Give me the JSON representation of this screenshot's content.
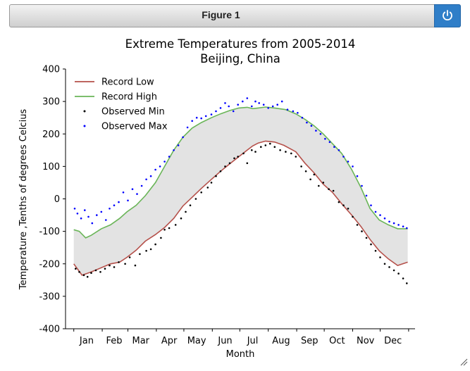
{
  "window": {
    "title": "Figure 1",
    "power_icon": "power-icon",
    "resize_icon": "resize-grip-icon"
  },
  "chart_data": {
    "type": "line",
    "title": "Extreme Temperatures from 2005-2014",
    "subtitle": "Beijing, China",
    "xlabel": "Month",
    "ylabel": "Temperature ,Tenths of degrees Celcius",
    "ylim": [
      -400,
      400
    ],
    "xlim": [
      -8,
      373
    ],
    "yticks": [
      -400,
      -300,
      -200,
      -100,
      0,
      100,
      200,
      300,
      400
    ],
    "month_labels": [
      "Jan",
      "Feb",
      "Mar",
      "Apr",
      "May",
      "Jun",
      "Jul",
      "Aug",
      "Sep",
      "Oct",
      "Nov",
      "Dec"
    ],
    "month_positions": [
      15,
      45,
      74,
      105,
      135,
      166,
      196,
      227,
      258,
      288,
      319,
      349
    ],
    "grid": false,
    "legend_position": "top-left",
    "fill_between": {
      "color": "#e3e3e3"
    },
    "series": [
      {
        "name": "Record Low",
        "kind": "line",
        "color": "#b5504a",
        "x": [
          1,
          10,
          20,
          31,
          41,
          51,
          59,
          69,
          79,
          90,
          100,
          110,
          120,
          130,
          140,
          151,
          161,
          171,
          181,
          190,
          196,
          202,
          210,
          220,
          230,
          243,
          253,
          263,
          273,
          283,
          293,
          304,
          314,
          324,
          334,
          344,
          354,
          365
        ],
        "y": [
          -200,
          -235,
          -225,
          -212,
          -200,
          -195,
          -180,
          -158,
          -130,
          -110,
          -88,
          -60,
          -22,
          5,
          32,
          60,
          85,
          108,
          130,
          150,
          163,
          172,
          178,
          175,
          165,
          145,
          110,
          80,
          45,
          20,
          -15,
          -50,
          -85,
          -125,
          -160,
          -185,
          -205,
          -195
        ]
      },
      {
        "name": "Record High",
        "kind": "line",
        "color": "#6ab558",
        "x": [
          1,
          7,
          14,
          20,
          31,
          41,
          51,
          59,
          69,
          79,
          90,
          100,
          110,
          120,
          130,
          140,
          151,
          161,
          171,
          181,
          190,
          196,
          202,
          210,
          220,
          232,
          243,
          253,
          263,
          273,
          283,
          293,
          304,
          314,
          324,
          334,
          344,
          354,
          365
        ],
        "y": [
          -95,
          -100,
          -120,
          -112,
          -92,
          -80,
          -60,
          -40,
          -20,
          10,
          50,
          100,
          150,
          190,
          218,
          235,
          250,
          262,
          272,
          280,
          282,
          278,
          280,
          283,
          280,
          275,
          262,
          245,
          225,
          200,
          170,
          140,
          90,
          35,
          -30,
          -65,
          -80,
          -92,
          -92
        ]
      },
      {
        "name": "Observed Min",
        "kind": "scatter",
        "color": "#000000",
        "x": [
          3,
          7,
          12,
          16,
          20,
          25,
          30,
          35,
          40,
          45,
          50,
          57,
          62,
          68,
          73,
          80,
          85,
          90,
          96,
          100,
          105,
          112,
          118,
          123,
          128,
          134,
          140,
          147,
          151,
          156,
          161,
          166,
          171,
          176,
          180,
          186,
          190,
          195,
          199,
          205,
          210,
          215,
          220,
          226,
          232,
          238,
          243,
          249,
          254,
          259,
          263,
          268,
          273,
          279,
          284,
          290,
          295,
          300,
          305,
          310,
          315,
          320,
          325,
          330,
          335,
          340,
          345,
          350,
          355,
          360,
          364
        ],
        "y": [
          -215,
          -225,
          -235,
          -240,
          -228,
          -220,
          -225,
          -215,
          -205,
          -210,
          -195,
          -200,
          -180,
          -205,
          -170,
          -160,
          -155,
          -140,
          -120,
          -95,
          -90,
          -80,
          -60,
          -40,
          -20,
          0,
          20,
          35,
          50,
          70,
          85,
          100,
          110,
          125,
          130,
          140,
          110,
          150,
          145,
          160,
          165,
          170,
          160,
          150,
          145,
          140,
          130,
          100,
          85,
          60,
          75,
          40,
          50,
          30,
          25,
          -10,
          -20,
          -30,
          -55,
          -80,
          -100,
          -120,
          -140,
          -160,
          -180,
          -200,
          -210,
          -220,
          -230,
          -245,
          -260
        ]
      },
      {
        "name": "Observed Max",
        "kind": "scatter",
        "color": "#0000ff",
        "x": [
          2,
          5,
          9,
          13,
          17,
          21,
          26,
          31,
          36,
          40,
          45,
          50,
          55,
          60,
          65,
          70,
          75,
          80,
          85,
          90,
          95,
          100,
          105,
          110,
          115,
          120,
          125,
          130,
          135,
          140,
          145,
          151,
          156,
          161,
          166,
          170,
          175,
          180,
          185,
          190,
          195,
          199,
          203,
          208,
          213,
          218,
          223,
          228,
          234,
          240,
          245,
          250,
          255,
          260,
          265,
          270,
          275,
          280,
          285,
          290,
          295,
          300,
          305,
          310,
          315,
          320,
          325,
          330,
          335,
          340,
          345,
          350,
          355,
          360,
          364
        ],
        "y": [
          -30,
          -45,
          -60,
          -35,
          -55,
          -75,
          -50,
          -40,
          -65,
          -30,
          -20,
          -10,
          20,
          -5,
          30,
          15,
          40,
          60,
          70,
          90,
          100,
          115,
          130,
          150,
          165,
          190,
          220,
          240,
          250,
          248,
          255,
          260,
          270,
          280,
          295,
          285,
          270,
          290,
          300,
          310,
          285,
          300,
          295,
          290,
          280,
          285,
          290,
          300,
          275,
          270,
          265,
          250,
          235,
          225,
          210,
          200,
          185,
          175,
          160,
          150,
          130,
          115,
          100,
          70,
          40,
          10,
          -20,
          -40,
          -50,
          -60,
          -70,
          -75,
          -80,
          -85,
          -90
        ]
      }
    ]
  }
}
